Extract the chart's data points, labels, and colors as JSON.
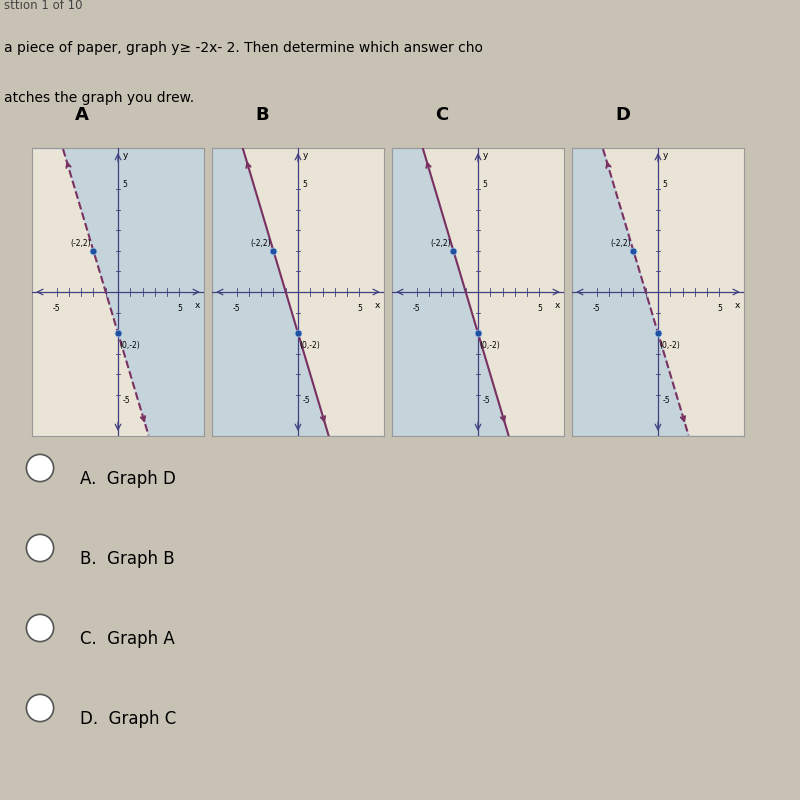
{
  "graphs": [
    {
      "label": "A",
      "line_dashed": true,
      "shade_right": true
    },
    {
      "label": "B",
      "line_dashed": false,
      "shade_right": false
    },
    {
      "label": "C",
      "line_dashed": false,
      "shade_right": false
    },
    {
      "label": "D",
      "line_dashed": true,
      "shade_right": false
    }
  ],
  "answer_choices": [
    {
      "letter": "A",
      "text": "Graph D"
    },
    {
      "letter": "B",
      "text": "Graph B"
    },
    {
      "letter": "C",
      "text": "Graph A"
    },
    {
      "letter": "D",
      "text": "Graph C"
    }
  ],
  "header_line1": "sttion 1 of 10",
  "header_line2": "a piece of paper, graph y≥ -2x- 2. Then determine which answer cho",
  "header_line3": "atches the graph you drew.",
  "bg_color": "#C8C2B4",
  "panel_bg": "#EAE4D6",
  "shade_color": "#A8C8E0",
  "shade_alpha": 0.55,
  "line_color": "#7A3060",
  "axis_color": "#404080",
  "point_color": "#2050A0",
  "arrow_color": "#7A3060",
  "xlim": [
    -7,
    7
  ],
  "ylim": [
    -7,
    7
  ],
  "point_size": 5,
  "key_points": [
    [
      -2,
      2
    ],
    [
      0,
      -2
    ]
  ]
}
